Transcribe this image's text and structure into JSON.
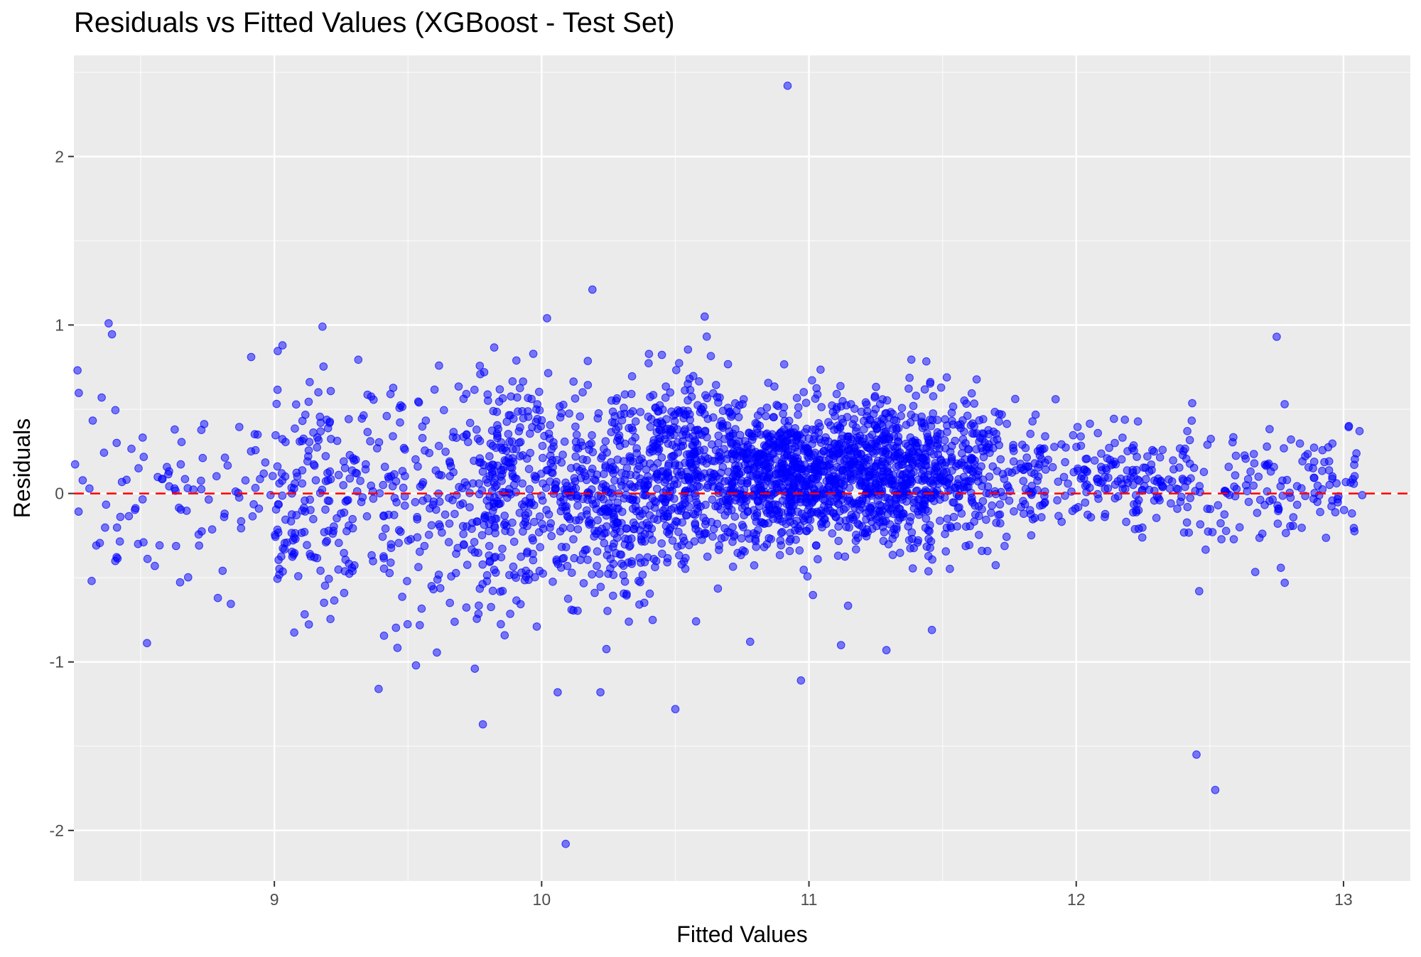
{
  "chart_data": {
    "type": "scatter",
    "title": "Residuals vs Fitted Values (XGBoost - Test Set)",
    "xlabel": "Fitted Values",
    "ylabel": "Residuals",
    "xlim": [
      8.25,
      13.25
    ],
    "ylim": [
      -2.3,
      2.6
    ],
    "x_ticks": [
      9,
      10,
      11,
      12,
      13
    ],
    "y_ticks": [
      -2,
      -1,
      0,
      1,
      2
    ],
    "grid": true,
    "reference_line": {
      "y": 0,
      "style": "dashed",
      "color": "#ff0000"
    },
    "point_color": "#0000ff",
    "point_opacity": 0.5,
    "panel_background": "#ebebeb",
    "notable_points": [
      [
        10.92,
        2.42
      ],
      [
        10.19,
        1.21
      ],
      [
        8.38,
        1.01
      ],
      [
        9.18,
        0.99
      ],
      [
        10.02,
        1.04
      ],
      [
        10.61,
        1.05
      ],
      [
        12.75,
        0.93
      ],
      [
        10.09,
        -2.08
      ],
      [
        12.52,
        -1.76
      ],
      [
        12.45,
        -1.55
      ],
      [
        9.78,
        -1.37
      ],
      [
        10.5,
        -1.28
      ],
      [
        10.97,
        -1.11
      ],
      [
        9.39,
        -1.16
      ],
      [
        10.06,
        -1.18
      ],
      [
        10.22,
        -1.18
      ],
      [
        9.53,
        -1.02
      ],
      [
        9.75,
        -1.04
      ],
      [
        8.24,
        -0.21
      ],
      [
        8.49,
        -0.3
      ],
      [
        8.41,
        0.3
      ],
      [
        13.02,
        0.4
      ],
      [
        13.06,
        0.37
      ],
      [
        13.04,
        0.17
      ],
      [
        13.07,
        -0.01
      ],
      [
        12.78,
        -0.53
      ],
      [
        12.46,
        -0.58
      ],
      [
        11.46,
        -0.81
      ],
      [
        11.29,
        -0.93
      ],
      [
        11.12,
        -0.9
      ],
      [
        10.78,
        -0.88
      ]
    ],
    "point_count_approx": 3300
  }
}
